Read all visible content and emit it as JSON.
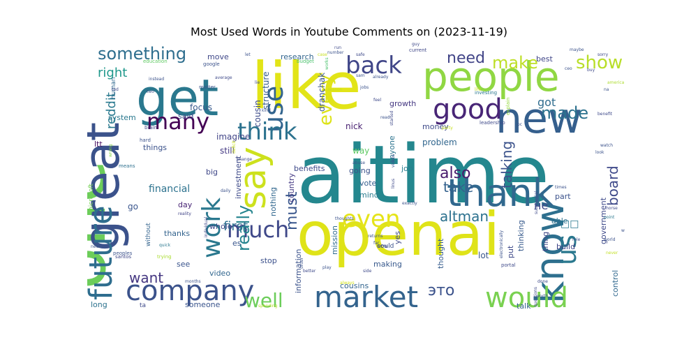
{
  "title": "Most Used Words in Youtube Comments on (2023-11-19)",
  "chart_data": {
    "type": "wordcloud",
    "title": "Most Used Words in Youtube Comments on (2023-11-19)",
    "colormap": "viridis",
    "background": "#ffffff",
    "words": [
      {
        "text": "aitime",
        "weight": 100,
        "color": "#24878e"
      },
      {
        "text": "like",
        "weight": 96,
        "color": "#e2e418"
      },
      {
        "text": "one",
        "weight": 95,
        "color": "#6ccd5a"
      },
      {
        "text": "openai",
        "weight": 90,
        "color": "#dfe318"
      },
      {
        "text": "people",
        "weight": 80,
        "color": "#90d743"
      },
      {
        "text": "get",
        "weight": 76,
        "color": "#2a788e"
      },
      {
        "text": "great",
        "weight": 70,
        "color": "#3b528b"
      },
      {
        "text": "new",
        "weight": 66,
        "color": "#355f8d"
      },
      {
        "text": "know",
        "weight": 58,
        "color": "#2d6f8e"
      },
      {
        "text": "thank",
        "weight": 56,
        "color": "#31688e"
      },
      {
        "text": "say",
        "weight": 55,
        "color": "#cde11d"
      },
      {
        "text": "future",
        "weight": 48,
        "color": "#2e6d8e"
      },
      {
        "text": "market",
        "weight": 45,
        "color": "#33638d"
      },
      {
        "text": "company",
        "weight": 42,
        "color": "#3b528b"
      },
      {
        "text": "would",
        "weight": 42,
        "color": "#7ad151"
      },
      {
        "text": "good",
        "weight": 42,
        "color": "#482576"
      },
      {
        "text": "back",
        "weight": 40,
        "color": "#404688"
      },
      {
        "text": "use",
        "weight": 40,
        "color": "#32648e"
      },
      {
        "text": "work",
        "weight": 40,
        "color": "#2a788e"
      },
      {
        "text": "even",
        "weight": 38,
        "color": "#e5e419"
      },
      {
        "text": "us",
        "weight": 38,
        "color": "#2a788e"
      },
      {
        "text": "think",
        "weight": 36,
        "color": "#2c728e"
      },
      {
        "text": "much",
        "weight": 36,
        "color": "#3f4889"
      },
      {
        "text": "many",
        "weight": 34,
        "color": "#440154"
      },
      {
        "text": "well",
        "weight": 30,
        "color": "#6ccd5a"
      },
      {
        "text": "something",
        "weight": 28,
        "color": "#2e6e8e"
      },
      {
        "text": "show",
        "weight": 28,
        "color": "#b8de29"
      },
      {
        "text": "make",
        "weight": 26,
        "color": "#bddf26"
      },
      {
        "text": "need",
        "weight": 24,
        "color": "#414487"
      },
      {
        "text": "every",
        "weight": 24,
        "color": "#dde318"
      },
      {
        "text": "really",
        "weight": 24,
        "color": "#25848e"
      },
      {
        "text": "made",
        "weight": 24,
        "color": "#2c728e"
      },
      {
        "text": "board",
        "weight": 22,
        "color": "#3e4989"
      },
      {
        "text": "want",
        "weight": 22,
        "color": "#453781"
      },
      {
        "text": "also",
        "weight": 22,
        "color": "#481a6c"
      },
      {
        "text": "take",
        "weight": 22,
        "color": "#34618d"
      },
      {
        "text": "must",
        "weight": 22,
        "color": "#39568c"
      },
      {
        "text": "altman",
        "weight": 20,
        "color": "#2c718e"
      },
      {
        "text": "talking",
        "weight": 20,
        "color": "#3b528b"
      },
      {
        "text": "right",
        "weight": 18,
        "color": "#1f988b"
      },
      {
        "text": "reddit",
        "weight": 18,
        "color": "#29798e"
      },
      {
        "text": "first",
        "weight": 16,
        "color": "#2d708e"
      },
      {
        "text": "financial",
        "weight": 14,
        "color": "#2c728e"
      },
      {
        "text": "got",
        "weight": 16,
        "color": "#2f6c8e"
      },
      {
        "text": "imagine",
        "weight": 12,
        "color": "#414487"
      },
      {
        "text": "still",
        "weight": 12,
        "color": "#443983"
      },
      {
        "text": "focus",
        "weight": 12,
        "color": "#38588c"
      },
      {
        "text": "cousin",
        "weight": 12,
        "color": "#3e4c8a"
      },
      {
        "text": "structure",
        "weight": 12,
        "color": "#365c8d"
      },
      {
        "text": "dranchak",
        "weight": 12,
        "color": "#3a548c"
      },
      {
        "text": "research",
        "weight": 11,
        "color": "#32658e"
      },
      {
        "text": "move",
        "weight": 11,
        "color": "#3f4788"
      },
      {
        "text": "best",
        "weight": 11,
        "color": "#404688"
      },
      {
        "text": "growth",
        "weight": 11,
        "color": "#453882"
      },
      {
        "text": "said",
        "weight": 11,
        "color": "#3d4e8a"
      },
      {
        "text": "things",
        "weight": 11,
        "color": "#3b528b"
      },
      {
        "text": "system",
        "weight": 11,
        "color": "#2a788e"
      },
      {
        "text": "ltt",
        "weight": 11,
        "color": "#470e61"
      },
      {
        "text": "go",
        "weight": 12,
        "color": "#39558c"
      },
      {
        "text": "day",
        "weight": 11,
        "color": "#482475"
      },
      {
        "text": "big",
        "weight": 11,
        "color": "#3f4788"
      },
      {
        "text": "way",
        "weight": 12,
        "color": "#5ec962"
      },
      {
        "text": "job",
        "weight": 11,
        "color": "#287d8e"
      },
      {
        "text": "problem",
        "weight": 12,
        "color": "#31668e"
      },
      {
        "text": "money",
        "weight": 11,
        "color": "#3e4a89"
      },
      {
        "text": "benefits",
        "weight": 11,
        "color": "#3e4989"
      },
      {
        "text": "going",
        "weight": 11,
        "color": "#3b528b"
      },
      {
        "text": "vote",
        "weight": 11,
        "color": "#355f8d"
      },
      {
        "text": "mind",
        "weight": 11,
        "color": "#287c8e"
      },
      {
        "text": "nick",
        "weight": 12,
        "color": "#482071"
      },
      {
        "text": "anyone",
        "weight": 11,
        "color": "#2c738e"
      },
      {
        "text": "investment",
        "weight": 11,
        "color": "#3e4a89"
      },
      {
        "text": "country",
        "weight": 11,
        "color": "#443983"
      },
      {
        "text": "nothing",
        "weight": 11,
        "color": "#31678e"
      },
      {
        "text": "mission",
        "weight": 11,
        "color": "#2f6b8e"
      },
      {
        "text": "whole",
        "weight": 11,
        "color": "#3f4889"
      },
      {
        "text": "thanks",
        "weight": 11,
        "color": "#33638d"
      },
      {
        "text": "video",
        "weight": 11,
        "color": "#31668e"
      },
      {
        "text": "see",
        "weight": 11,
        "color": "#3a548c"
      },
      {
        "text": "stop",
        "weight": 11,
        "color": "#3c508b"
      },
      {
        "text": "making",
        "weight": 11,
        "color": "#38598c"
      },
      {
        "text": "information",
        "weight": 11,
        "color": "#3b528b"
      },
      {
        "text": "cousins",
        "weight": 11,
        "color": "#32648e"
      },
      {
        "text": "thought",
        "weight": 11,
        "color": "#365d8d"
      },
      {
        "text": "lot",
        "weight": 12,
        "color": "#39568c"
      },
      {
        "text": "thinking",
        "weight": 11,
        "color": "#375a8c"
      },
      {
        "text": "put",
        "weight": 11,
        "color": "#3e4989"
      },
      {
        "text": "thing",
        "weight": 11,
        "color": "#3f4788"
      },
      {
        "text": "talk",
        "weight": 11,
        "color": "#33638d"
      },
      {
        "text": "able",
        "weight": 11,
        "color": "#2d708e"
      },
      {
        "text": "part",
        "weight": 11,
        "color": "#3b528b"
      },
      {
        "text": "build",
        "weight": 11,
        "color": "#404588"
      },
      {
        "text": "government",
        "weight": 11,
        "color": "#3e4989"
      },
      {
        "text": "control",
        "weight": 11,
        "color": "#31688e"
      },
      {
        "text": "someone",
        "weight": 11,
        "color": "#3a548c"
      },
      {
        "text": "long",
        "weight": 11,
        "color": "#2c728e"
      },
      {
        "text": "es",
        "weight": 11,
        "color": "#39568c"
      },
      {
        "text": "yes",
        "weight": 11,
        "color": "#3e4989"
      },
      {
        "text": "human",
        "weight": 9,
        "color": "#30698e"
      },
      {
        "text": "microsoft",
        "weight": 9,
        "color": "#74d055"
      },
      {
        "text": "without",
        "weight": 9,
        "color": "#33638d"
      },
      {
        "text": "could",
        "weight": 9,
        "color": "#3b528b"
      },
      {
        "text": "education",
        "weight": 7,
        "color": "#5ec962"
      },
      {
        "text": "google",
        "weight": 7,
        "color": "#3b528b"
      },
      {
        "text": "budget",
        "weight": 7,
        "color": "#4ac16d"
      },
      {
        "text": "current",
        "weight": 7,
        "color": "#3f4788"
      },
      {
        "text": "investing",
        "weight": 7,
        "color": "#2a788e"
      },
      {
        "text": "leadership",
        "weight": 7,
        "color": "#3e4989"
      },
      {
        "text": "explain",
        "weight": 7,
        "color": "#95d840"
      },
      {
        "text": "brain",
        "weight": 7,
        "color": "#3f4788"
      },
      {
        "text": "hard",
        "weight": 7,
        "color": "#3b528b"
      },
      {
        "text": "wrong",
        "weight": 6,
        "color": "#86d549"
      },
      {
        "text": "means",
        "weight": 7,
        "color": "#2d708e"
      },
      {
        "text": "reality",
        "weight": 6,
        "color": "#414487"
      },
      {
        "text": "individual",
        "weight": 6,
        "color": "#3e4989"
      },
      {
        "text": "peoples",
        "weight": 7,
        "color": "#3b528b"
      },
      {
        "text": "needs",
        "weight": 6,
        "color": "#3b528b"
      },
      {
        "text": "santos",
        "weight": 7,
        "color": "#3f4788"
      },
      {
        "text": "trying",
        "weight": 7,
        "color": "#aadc32"
      },
      {
        "text": "quick",
        "weight": 6,
        "color": "#2a788e"
      },
      {
        "text": "months",
        "weight": 6,
        "color": "#3b528b"
      },
      {
        "text": "spending",
        "weight": 6,
        "color": "#b5de2b"
      },
      {
        "text": "electronically",
        "weight": 6,
        "color": "#3b528b"
      },
      {
        "text": "portal",
        "weight": 7,
        "color": "#3e4989"
      },
      {
        "text": "worth",
        "weight": 6,
        "color": "#3b528b"
      },
      {
        "text": "done",
        "weight": 6,
        "color": "#3e4989"
      },
      {
        "text": "never",
        "weight": 6,
        "color": "#c2df23"
      },
      {
        "text": "world",
        "weight": 6,
        "color": "#3b528b"
      },
      {
        "text": "horse",
        "weight": 6,
        "color": "#3e4989"
      },
      {
        "text": "waste",
        "weight": 6,
        "color": "#3b528b"
      },
      {
        "text": "point",
        "weight": 7,
        "color": "#2a788e"
      },
      {
        "text": "watch",
        "weight": 6,
        "color": "#3b528b"
      },
      {
        "text": "benefit",
        "weight": 6,
        "color": "#3e4989"
      },
      {
        "text": "look",
        "weight": 6,
        "color": "#3b528b"
      },
      {
        "text": "sorry",
        "weight": 6,
        "color": "#3e4989"
      },
      {
        "text": "maybe",
        "weight": 6,
        "color": "#3b528b"
      },
      {
        "text": "america",
        "weight": 6,
        "color": "#addc30"
      },
      {
        "text": "ceo",
        "weight": 6,
        "color": "#3b528b"
      },
      {
        "text": "buy",
        "weight": 6,
        "color": "#3e4989"
      },
      {
        "text": "na",
        "weight": 6,
        "color": "#3b528b"
      },
      {
        "text": "role",
        "weight": 6,
        "color": "#3b528b"
      },
      {
        "text": "substantial",
        "weight": 6,
        "color": "#3e4989"
      },
      {
        "text": "exactly",
        "weight": 6,
        "color": "#3b528b"
      },
      {
        "text": "linus",
        "weight": 6,
        "color": "#3e4989"
      },
      {
        "text": "videos",
        "weight": 6,
        "color": "#3b528b"
      },
      {
        "text": "wow",
        "weight": 6,
        "color": "#3e4989"
      },
      {
        "text": "abuse",
        "weight": 7,
        "color": "#3b528b"
      },
      {
        "text": "daily",
        "weight": 6,
        "color": "#3b528b"
      },
      {
        "text": "change",
        "weight": 6,
        "color": "#3e4989"
      },
      {
        "text": "thoughts",
        "weight": 6,
        "color": "#3b528b"
      },
      {
        "text": "returns",
        "weight": 6,
        "color": "#3b528b"
      },
      {
        "text": "side",
        "weight": 6,
        "color": "#3e4989"
      },
      {
        "text": "order",
        "weight": 6,
        "color": "#3b528b"
      },
      {
        "text": "better",
        "weight": 6,
        "color": "#3e4989"
      },
      {
        "text": "always",
        "weight": 6,
        "color": "#d2e21b"
      },
      {
        "text": "play",
        "weight": 6,
        "color": "#3b528b"
      },
      {
        "text": "case",
        "weight": 6,
        "color": "#c8e020"
      },
      {
        "text": "number",
        "weight": 6,
        "color": "#3b528b"
      },
      {
        "text": "run",
        "weight": 6,
        "color": "#3e4989"
      },
      {
        "text": "works",
        "weight": 6,
        "color": "#4ac16d"
      },
      {
        "text": "sam",
        "weight": 6,
        "color": "#3b528b"
      },
      {
        "text": "safe",
        "weight": 6,
        "color": "#3e4989"
      },
      {
        "text": "read",
        "weight": 6,
        "color": "#3b528b"
      },
      {
        "text": "started",
        "weight": 6,
        "color": "#3e4989"
      },
      {
        "text": "kind",
        "weight": 6,
        "color": "#3b528b"
      },
      {
        "text": "lie",
        "weight": 6,
        "color": "#3e4989"
      },
      {
        "text": "jobs",
        "weight": 6,
        "color": "#3b528b"
      },
      {
        "text": "reason",
        "weight": 6,
        "color": "#c8e020"
      },
      {
        "text": "already",
        "weight": 7,
        "color": "#3b528b"
      },
      {
        "text": "feel",
        "weight": 6,
        "color": "#3e4989"
      },
      {
        "text": "let",
        "weight": 6,
        "color": "#3b528b"
      },
      {
        "text": "ted",
        "weight": 6,
        "color": "#3e4989"
      },
      {
        "text": "instead",
        "weight": 6,
        "color": "#3b528b"
      },
      {
        "text": "two",
        "weight": 6,
        "color": "#3b528b"
      },
      {
        "text": "average",
        "weight": 6,
        "color": "#3e4989"
      },
      {
        "text": "deficit",
        "weight": 6,
        "color": "#c8e020"
      },
      {
        "text": "times",
        "weight": 6,
        "color": "#3b528b"
      },
      {
        "text": "questions",
        "weight": 6,
        "color": "#3e4989"
      },
      {
        "text": "far",
        "weight": 6,
        "color": "#3b528b"
      },
      {
        "text": "guy",
        "weight": 6,
        "color": "#3e4989"
      },
      {
        "text": "life",
        "weight": 6,
        "color": "#c8e020"
      },
      {
        "text": "pc",
        "weight": 6,
        "color": "#3b528b"
      },
      {
        "text": "party",
        "weight": 6,
        "color": "#c8e020"
      },
      {
        "text": "matter",
        "weight": 6,
        "color": "#3b528b"
      },
      {
        "text": "ta",
        "weight": 6,
        "color": "#3e4989"
      },
      {
        "text": "это",
        "weight": 7,
        "color": "#3b528b"
      },
      {
        "text": "не",
        "weight": 9,
        "color": "#3e4989"
      },
      {
        "text": "□□",
        "weight": 22,
        "color": "#2a788e"
      },
      {
        "text": "□□□□",
        "weight": 16,
        "color": "#bddf26"
      },
      {
        "text": "□□",
        "weight": 14,
        "color": "#3b528b"
      }
    ]
  }
}
